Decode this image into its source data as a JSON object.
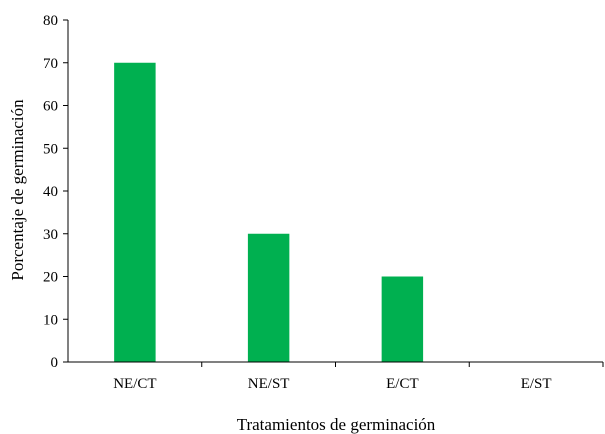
{
  "chart_data": {
    "type": "bar",
    "title": "",
    "xlabel": "Tratamientos de germinación",
    "ylabel": "Porcentaje de germinación",
    "categories": [
      "NE/CT",
      "NE/ST",
      "E/CT",
      "E/ST"
    ],
    "values": [
      70,
      30,
      20,
      0
    ],
    "ylim": [
      0,
      80
    ],
    "yticks": [
      "0",
      "10",
      "20",
      "30",
      "40",
      "50",
      "60",
      "70",
      "80"
    ],
    "grid": false,
    "legend": "none",
    "bar_color": "#00B050",
    "axis_color": "#000000"
  }
}
